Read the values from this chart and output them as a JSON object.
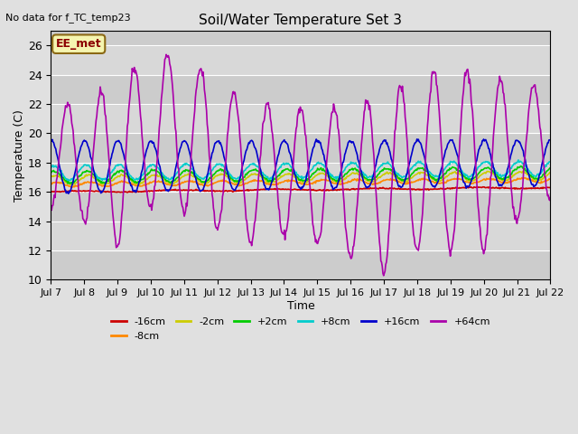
{
  "title": "Soil/Water Temperature Set 3",
  "xlabel": "Time",
  "ylabel": "Temperature (C)",
  "note": "No data for f_TC_temp23",
  "annotation": "EE_met",
  "ylim": [
    10,
    27
  ],
  "yticks": [
    10,
    12,
    14,
    16,
    18,
    20,
    22,
    24,
    26
  ],
  "x_labels": [
    "Jul 7",
    "Jul 8",
    "Jul 9",
    "Jul 10",
    "Jul 11",
    "Jul 12",
    "Jul 13",
    "Jul 14",
    "Jul 15",
    "Jul 16",
    "Jul 17",
    "Jul 18",
    "Jul 19",
    "Jul 20",
    "Jul 21",
    "Jul 22"
  ],
  "background_color": "#e0e0e0",
  "legend_entries": [
    "-16cm",
    "-8cm",
    "-2cm",
    "+2cm",
    "+8cm",
    "+16cm",
    "+64cm"
  ],
  "legend_colors": [
    "#cc0000",
    "#ff8800",
    "#cccc00",
    "#00cc00",
    "#00cccc",
    "#0000cc",
    "#aa00aa"
  ],
  "n_days": 15,
  "points_per_day": 48
}
